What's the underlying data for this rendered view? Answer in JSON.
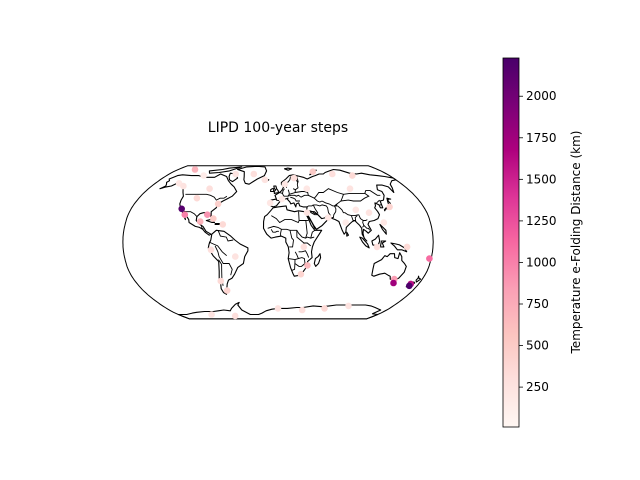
{
  "title": "LIPD 100-year steps",
  "colorbar": {
    "label": "Temperature e-Folding Distance (km)",
    "ticks": [
      250,
      500,
      750,
      1000,
      1250,
      1500,
      1750,
      2000
    ],
    "range": [
      10,
      2230
    ],
    "colormap": "RdPu",
    "stops": [
      "#fff7f3",
      "#fde0dd",
      "#fcc5c0",
      "#fa9fb5",
      "#f768a1",
      "#dd3497",
      "#ae017e",
      "#7a0177",
      "#49006a"
    ]
  },
  "chart_data": {
    "type": "scatter",
    "title": "LIPD 100-year steps",
    "projection": "Robinson",
    "color_label": "Temperature e-Folding Distance (km)",
    "points": [
      {
        "lon": -118,
        "lat": 34,
        "value": 2150
      },
      {
        "lon": -112,
        "lat": 28,
        "value": 1000
      },
      {
        "lon": -85,
        "lat": 28,
        "value": 900
      },
      {
        "lon": -92,
        "lat": 21,
        "value": 700
      },
      {
        "lon": -77,
        "lat": 24,
        "value": 500
      },
      {
        "lon": -75,
        "lat": 39,
        "value": 450
      },
      {
        "lon": -65,
        "lat": 18,
        "value": 350
      },
      {
        "lon": -145,
        "lat": 61,
        "value": 200
      },
      {
        "lon": -135,
        "lat": 58,
        "value": 250
      },
      {
        "lon": -120,
        "lat": 70,
        "value": 150
      },
      {
        "lon": -150,
        "lat": 78,
        "value": 700
      },
      {
        "lon": -95,
        "lat": 55,
        "value": 300
      },
      {
        "lon": -105,
        "lat": 45,
        "value": 350
      },
      {
        "lon": -70,
        "lat": 72,
        "value": 250
      },
      {
        "lon": -40,
        "lat": 72,
        "value": 300
      },
      {
        "lon": -20,
        "lat": 65,
        "value": 250
      },
      {
        "lon": 10,
        "lat": 60,
        "value": 200
      },
      {
        "lon": 25,
        "lat": 67,
        "value": 300
      },
      {
        "lon": 40,
        "lat": 55,
        "value": 200
      },
      {
        "lon": 60,
        "lat": 75,
        "value": 500
      },
      {
        "lon": 90,
        "lat": 72,
        "value": 300
      },
      {
        "lon": 120,
        "lat": 70,
        "value": 350
      },
      {
        "lon": 100,
        "lat": 55,
        "value": 250
      },
      {
        "lon": 95,
        "lat": 33,
        "value": 200
      },
      {
        "lon": 110,
        "lat": 30,
        "value": 250
      },
      {
        "lon": 138,
        "lat": 36,
        "value": 400
      },
      {
        "lon": 125,
        "lat": 20,
        "value": 200
      },
      {
        "lon": 80,
        "lat": 20,
        "value": 150
      },
      {
        "lon": 60,
        "lat": 25,
        "value": 200
      },
      {
        "lon": 35,
        "lat": 30,
        "value": 250
      },
      {
        "lon": 5,
        "lat": 44,
        "value": 150
      },
      {
        "lon": -10,
        "lat": 40,
        "value": 200
      },
      {
        "lon": 115,
        "lat": -5,
        "value": 300
      },
      {
        "lon": 150,
        "lat": -5,
        "value": 350
      },
      {
        "lon": 178,
        "lat": -17,
        "value": 1100
      },
      {
        "lon": 145,
        "lat": -38,
        "value": 850
      },
      {
        "lon": 147,
        "lat": -42,
        "value": 1750
      },
      {
        "lon": 170,
        "lat": -45,
        "value": 2200
      },
      {
        "lon": 170,
        "lat": -43,
        "value": 1600
      },
      {
        "lon": 35,
        "lat": -24,
        "value": 650
      },
      {
        "lon": 30,
        "lat": -5,
        "value": 300
      },
      {
        "lon": 28,
        "lat": -33,
        "value": 400
      },
      {
        "lon": -68,
        "lat": -50,
        "value": 400
      },
      {
        "lon": -72,
        "lat": -40,
        "value": 350
      },
      {
        "lon": -50,
        "lat": -15,
        "value": 250
      },
      {
        "lon": -78,
        "lat": -8,
        "value": 300
      },
      {
        "lon": 0,
        "lat": -70,
        "value": 250
      },
      {
        "lon": 40,
        "lat": -72,
        "value": 300
      },
      {
        "lon": 75,
        "lat": -70,
        "value": 350
      },
      {
        "lon": 110,
        "lat": -67,
        "value": 250
      },
      {
        "lon": -80,
        "lat": -80,
        "value": 300
      },
      {
        "lon": -120,
        "lat": -78,
        "value": 250
      }
    ]
  }
}
